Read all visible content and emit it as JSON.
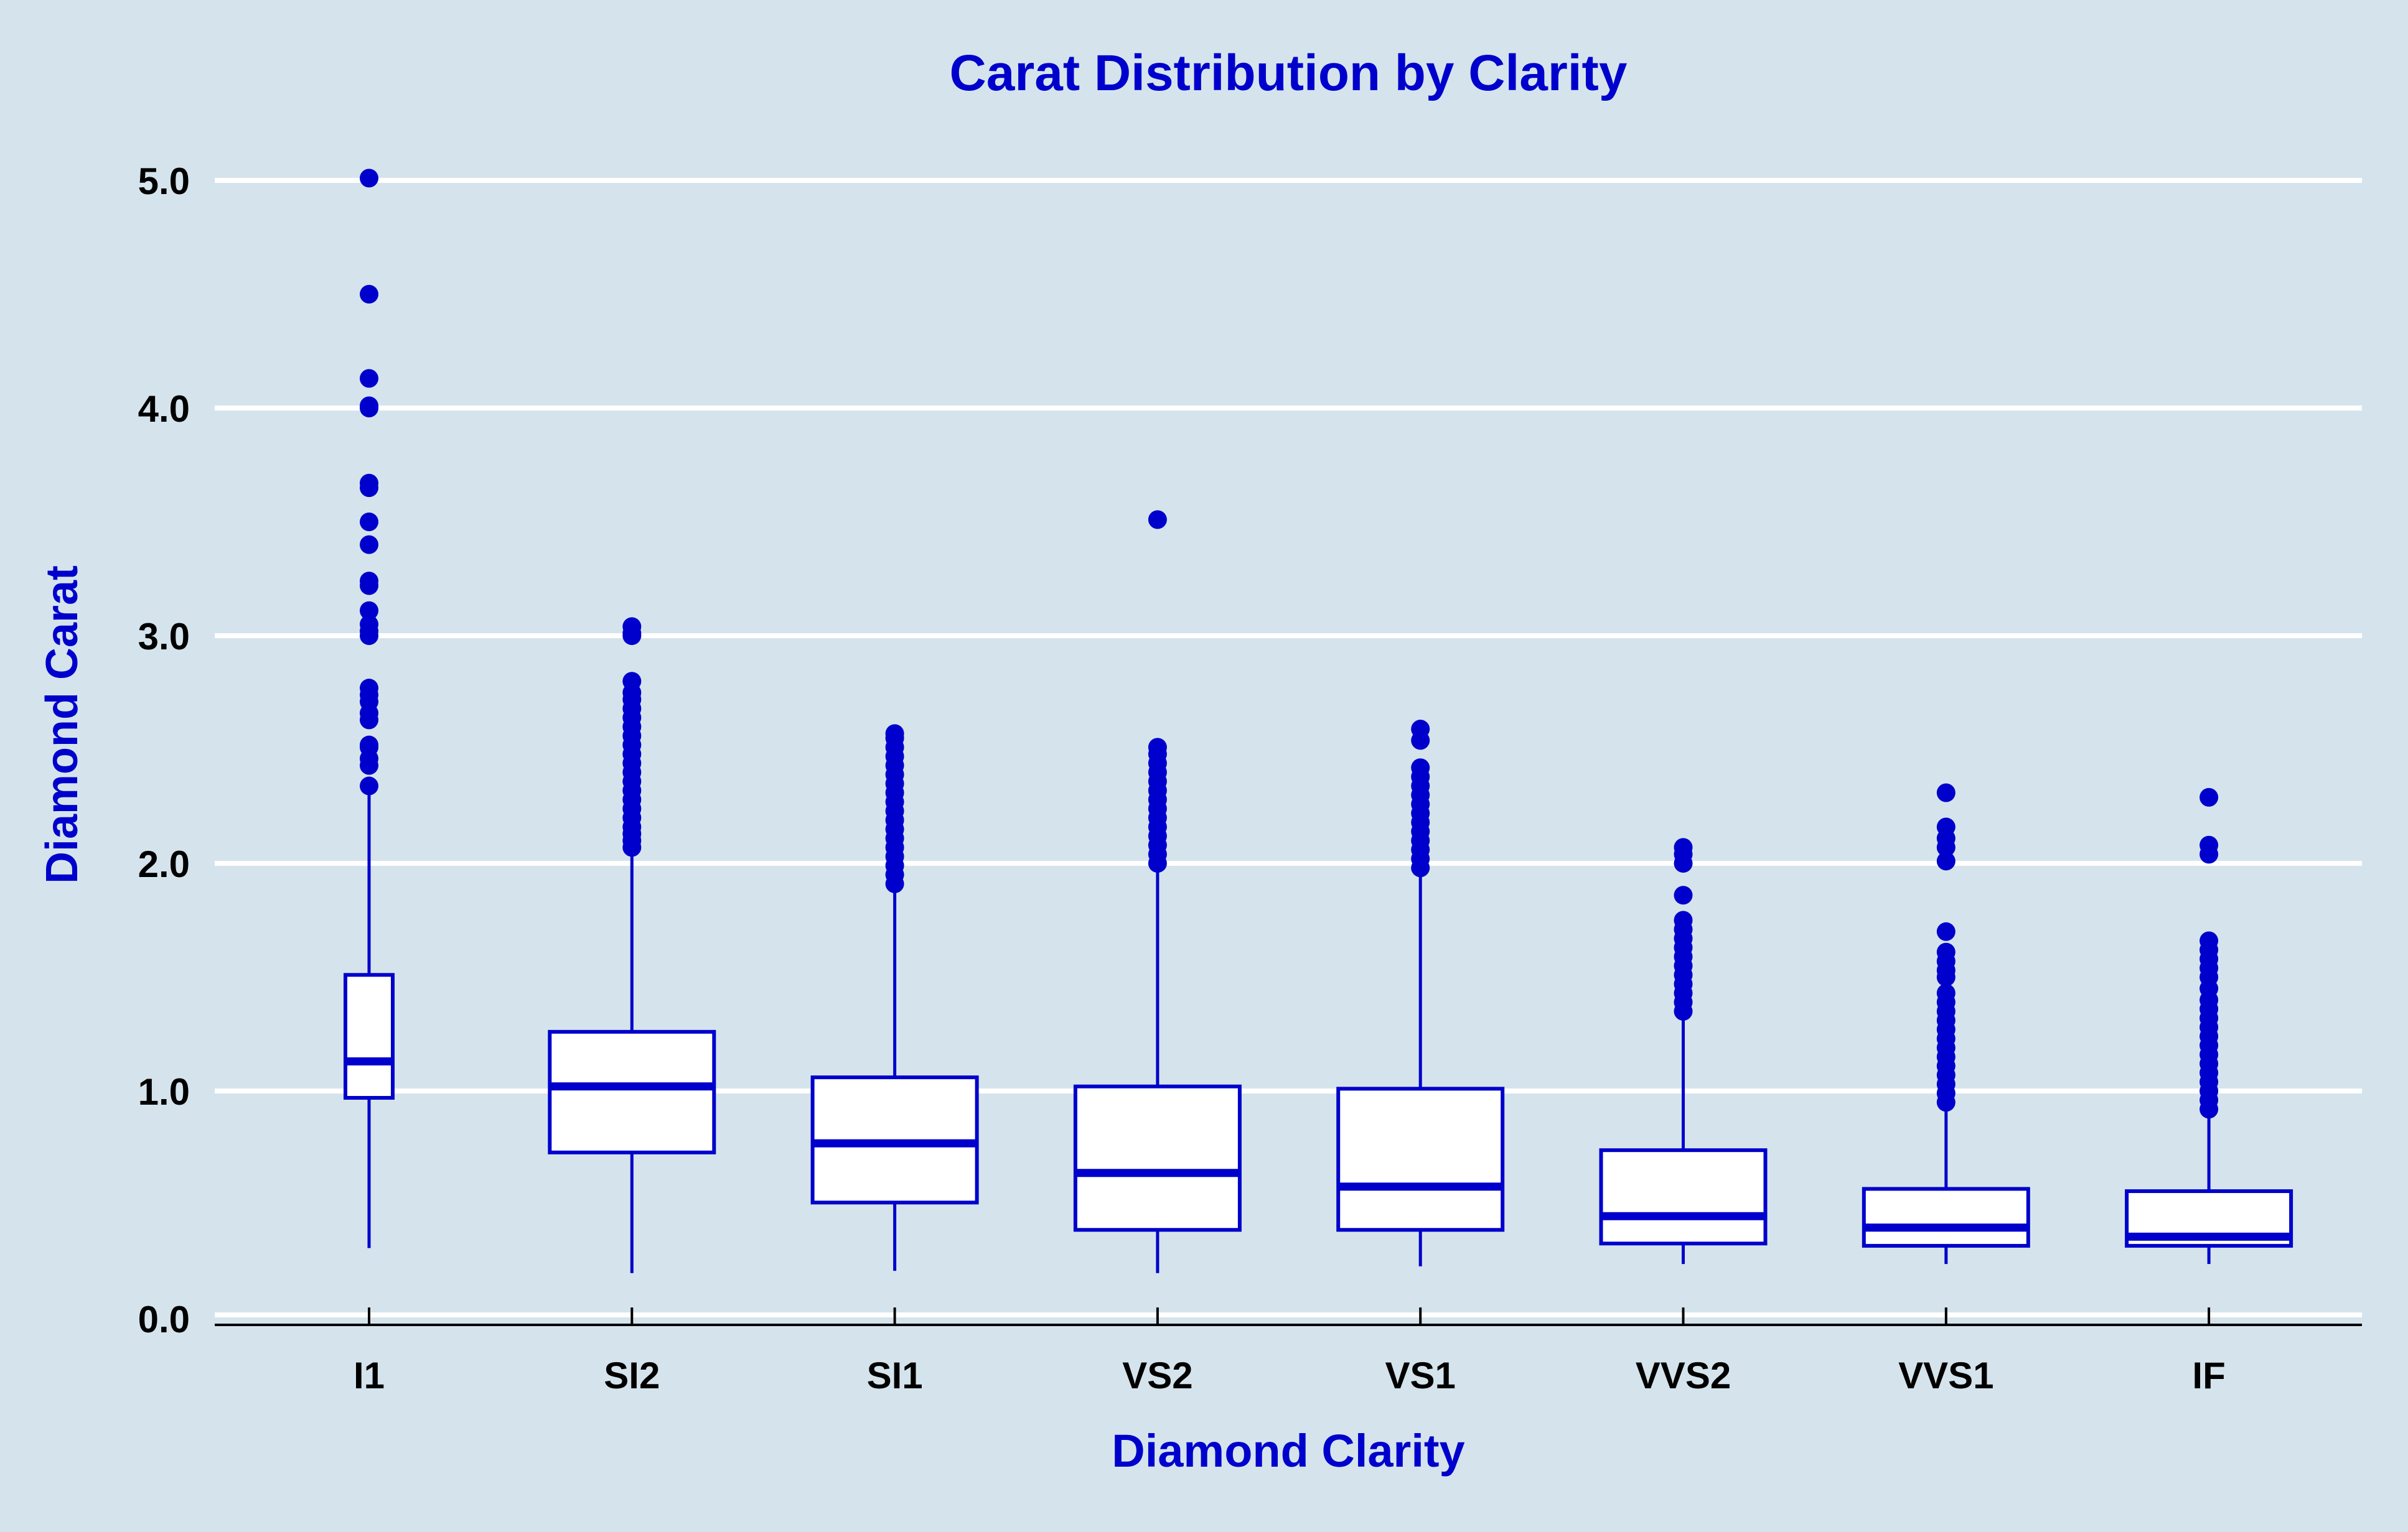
{
  "colors": {
    "background": "#d5e4ec",
    "accent": "#0000cc",
    "grid": "#ffffff",
    "axis": "#000000",
    "box_fill": "#ffffff"
  },
  "chart_data": {
    "type": "boxplot",
    "title": "Carat Distribution by Clarity",
    "xlabel": "Diamond Clarity",
    "ylabel": "Diamond Carat",
    "ylim": [
      0,
      5
    ],
    "yticks": [
      0,
      1,
      2,
      3,
      4,
      5
    ],
    "ytick_labels": [
      "0.0",
      "1.0",
      "2.0",
      "3.0",
      "4.0",
      "5.0"
    ],
    "grid": "horizontal",
    "categories": [
      "I1",
      "SI2",
      "SI1",
      "VS2",
      "VS1",
      "VVS2",
      "VVS1",
      "IF"
    ],
    "boxes": [
      {
        "category": "I1",
        "whisker_low": 0.31,
        "q1": 0.97,
        "median": 1.13,
        "q3": 1.51,
        "whisker_high": 2.32,
        "outliers": [
          2.34,
          2.43,
          2.46,
          2.51,
          2.52,
          2.63,
          2.66,
          2.71,
          2.74,
          2.77,
          3.0,
          3.02,
          3.05,
          3.11,
          3.22,
          3.24,
          3.4,
          3.5,
          3.65,
          3.67,
          4.0,
          4.01,
          4.13,
          4.5,
          5.01
        ]
      },
      {
        "category": "SI2",
        "whisker_low": 0.2,
        "q1": 0.73,
        "median": 1.02,
        "q3": 1.26,
        "whisker_high": 2.06,
        "outliers": [
          2.07,
          2.1,
          2.13,
          2.16,
          2.2,
          2.24,
          2.28,
          2.32,
          2.36,
          2.4,
          2.44,
          2.48,
          2.52,
          2.56,
          2.6,
          2.64,
          2.68,
          2.72,
          2.75,
          2.8,
          3.0,
          3.01,
          3.04
        ]
      },
      {
        "category": "SI1",
        "whisker_low": 0.21,
        "q1": 0.51,
        "median": 0.77,
        "q3": 1.06,
        "whisker_high": 1.9,
        "outliers": [
          1.91,
          1.95,
          1.99,
          2.03,
          2.07,
          2.11,
          2.15,
          2.19,
          2.23,
          2.27,
          2.31,
          2.35,
          2.39,
          2.43,
          2.47,
          2.51,
          2.55,
          2.57
        ]
      },
      {
        "category": "VS2",
        "whisker_low": 0.2,
        "q1": 0.39,
        "median": 0.64,
        "q3": 1.02,
        "whisker_high": 1.98,
        "outliers": [
          2.0,
          2.04,
          2.08,
          2.12,
          2.16,
          2.2,
          2.24,
          2.28,
          2.32,
          2.36,
          2.4,
          2.44,
          2.48,
          2.51,
          3.51
        ]
      },
      {
        "category": "VS1",
        "whisker_low": 0.23,
        "q1": 0.39,
        "median": 0.58,
        "q3": 1.01,
        "whisker_high": 1.96,
        "outliers": [
          1.98,
          2.02,
          2.06,
          2.1,
          2.14,
          2.18,
          2.22,
          2.26,
          2.3,
          2.34,
          2.38,
          2.42,
          2.54,
          2.59
        ]
      },
      {
        "category": "VVS2",
        "whisker_low": 0.24,
        "q1": 0.33,
        "median": 0.45,
        "q3": 0.74,
        "whisker_high": 1.33,
        "outliers": [
          1.35,
          1.39,
          1.43,
          1.47,
          1.51,
          1.55,
          1.59,
          1.63,
          1.67,
          1.71,
          1.75,
          1.86,
          2.0,
          2.04,
          2.07
        ]
      },
      {
        "category": "VVS1",
        "whisker_low": 0.24,
        "q1": 0.32,
        "median": 0.4,
        "q3": 0.57,
        "whisker_high": 0.93,
        "outliers": [
          0.95,
          0.99,
          1.03,
          1.07,
          1.11,
          1.15,
          1.19,
          1.23,
          1.27,
          1.31,
          1.35,
          1.39,
          1.43,
          1.5,
          1.53,
          1.57,
          1.61,
          1.7,
          2.01,
          2.07,
          2.11,
          2.16,
          2.31
        ]
      },
      {
        "category": "IF",
        "whisker_low": 0.24,
        "q1": 0.32,
        "median": 0.36,
        "q3": 0.56,
        "whisker_high": 0.9,
        "outliers": [
          0.92,
          0.96,
          1.0,
          1.04,
          1.08,
          1.12,
          1.16,
          1.2,
          1.24,
          1.28,
          1.32,
          1.36,
          1.4,
          1.45,
          1.5,
          1.54,
          1.58,
          1.62,
          1.66,
          2.04,
          2.08,
          2.29
        ]
      }
    ]
  }
}
